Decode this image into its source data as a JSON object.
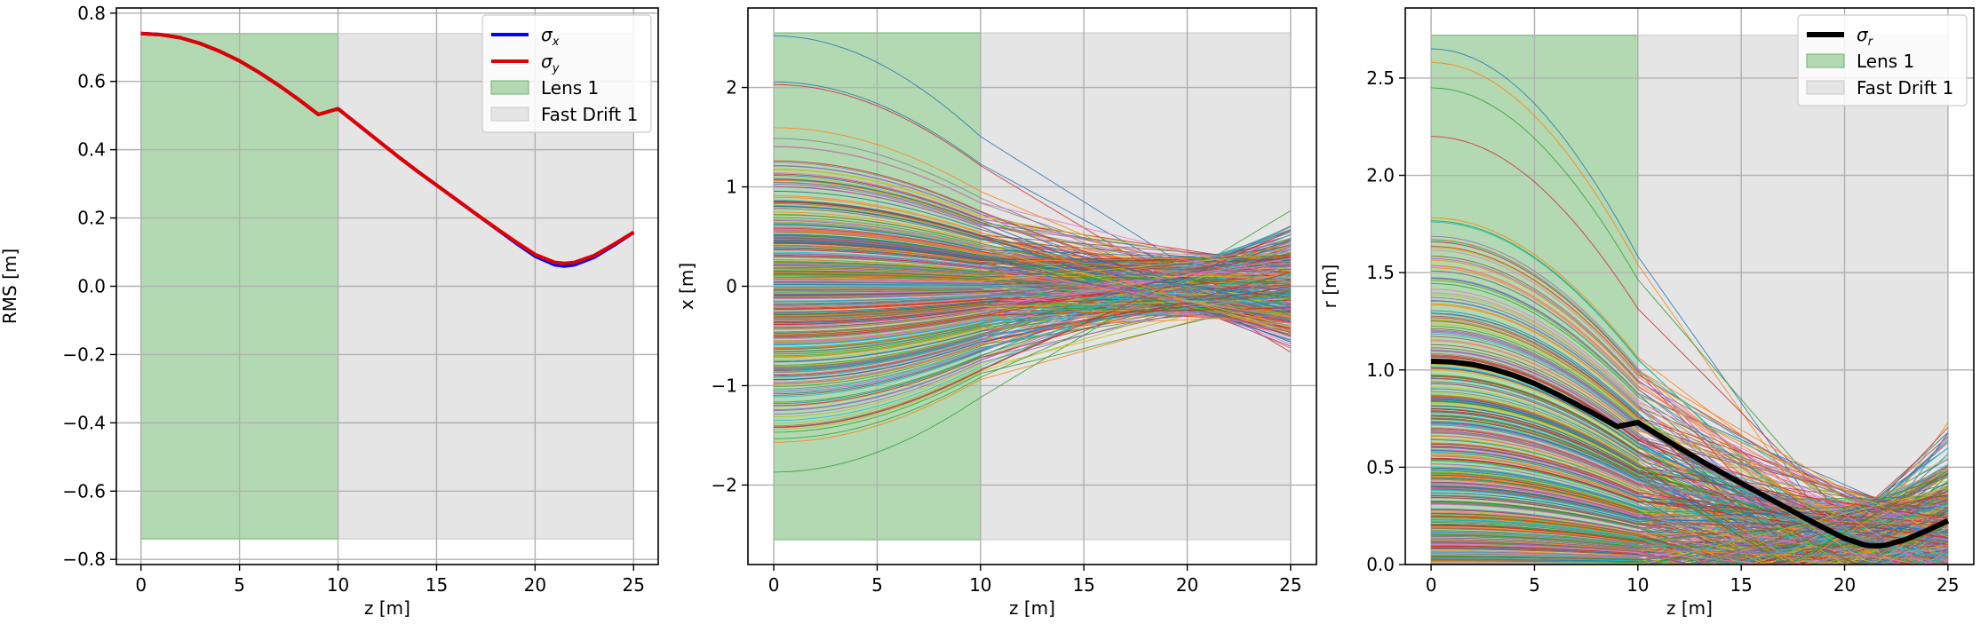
{
  "chart_data": [
    {
      "type": "line",
      "title": "",
      "xlabel": "z [m]",
      "ylabel": "RMS [m]",
      "xlim": [
        -1.25,
        26.25
      ],
      "ylim": [
        -0.815,
        0.815
      ],
      "xticks": [
        0,
        5,
        10,
        15,
        20,
        25
      ],
      "xtick_labels": [
        "0",
        "5",
        "10",
        "15",
        "20",
        "25"
      ],
      "yticks": [
        -0.8,
        -0.6,
        -0.4,
        -0.2,
        0.0,
        0.2,
        0.4,
        0.6,
        0.8
      ],
      "ytick_labels": [
        "−0.8",
        "−0.6",
        "−0.4",
        "−0.2",
        "0.0",
        "0.2",
        "0.4",
        "0.6",
        "0.8"
      ],
      "grid": true,
      "legend_position": "top-right",
      "regions": [
        {
          "name": "Lens 1",
          "x": [
            0,
            10
          ],
          "y": [
            -0.74,
            0.74
          ],
          "color": "#b3d9b3",
          "edge": "#6fb06f"
        },
        {
          "name": "Fast Drift 1",
          "x": [
            10,
            25
          ],
          "y": [
            -0.74,
            0.74
          ],
          "color": "#e5e5e5",
          "edge": "#c8c8c8"
        }
      ],
      "series": [
        {
          "name": "σ",
          "sub": "x",
          "color": "#0000ff",
          "x": [
            0,
            1,
            2,
            3,
            4,
            5,
            6,
            7,
            8,
            9,
            10,
            11,
            12,
            13,
            14,
            15,
            16,
            17,
            18,
            19,
            20,
            21,
            21.5,
            22,
            23,
            24,
            25
          ],
          "y": [
            0.74,
            0.737,
            0.728,
            0.711,
            0.688,
            0.66,
            0.626,
            0.588,
            0.547,
            0.503,
            0.52,
            0.474,
            0.428,
            0.382,
            0.338,
            0.296,
            0.254,
            0.212,
            0.17,
            0.128,
            0.088,
            0.063,
            0.059,
            0.063,
            0.085,
            0.12,
            0.158
          ]
        },
        {
          "name": "σ",
          "sub": "y",
          "color": "#e00000",
          "x": [
            0,
            1,
            2,
            3,
            4,
            5,
            6,
            7,
            8,
            9,
            10,
            11,
            12,
            13,
            14,
            15,
            16,
            17,
            18,
            19,
            20,
            21,
            21.5,
            22,
            23,
            24,
            25
          ],
          "y": [
            0.74,
            0.737,
            0.728,
            0.711,
            0.688,
            0.66,
            0.626,
            0.588,
            0.547,
            0.503,
            0.52,
            0.474,
            0.428,
            0.382,
            0.338,
            0.296,
            0.254,
            0.212,
            0.171,
            0.131,
            0.093,
            0.07,
            0.067,
            0.07,
            0.09,
            0.123,
            0.158
          ]
        }
      ]
    },
    {
      "type": "line",
      "title": "",
      "xlabel": "z [m]",
      "ylabel": "x [m]",
      "xlim": [
        -1.25,
        26.25
      ],
      "ylim": [
        -2.8,
        2.8
      ],
      "xticks": [
        0,
        5,
        10,
        15,
        20,
        25
      ],
      "xtick_labels": [
        "0",
        "5",
        "10",
        "15",
        "20",
        "25"
      ],
      "yticks": [
        -2,
        -1,
        0,
        1,
        2
      ],
      "ytick_labels": [
        "−2",
        "−1",
        "0",
        "1",
        "2"
      ],
      "grid": true,
      "regions": [
        {
          "name": "Lens 1",
          "x": [
            0,
            10
          ],
          "y": [
            -2.55,
            2.55
          ],
          "color": "#b3d9b3",
          "edge": "#6fb06f"
        },
        {
          "name": "Fast Drift 1",
          "x": [
            10,
            25
          ],
          "y": [
            -2.55,
            2.55
          ],
          "color": "#e5e5e5",
          "edge": "#c8c8c8"
        }
      ],
      "trajectories": {
        "count": 400,
        "model": "x(z) = x0 * f(z) + x0' * g(z), focusing inside the lens, linear drift after, waist near z = 21.5",
        "x0_range": [
          -1.85,
          2.55
        ],
        "focus_z": 21.5,
        "end_spread": [
          -0.5,
          0.45
        ]
      }
    },
    {
      "type": "line",
      "title": "",
      "xlabel": "z [m]",
      "ylabel": "r [m]",
      "xlim": [
        -1.25,
        26.25
      ],
      "ylim": [
        0.0,
        2.86
      ],
      "xticks": [
        0,
        5,
        10,
        15,
        20,
        25
      ],
      "xtick_labels": [
        "0",
        "5",
        "10",
        "15",
        "20",
        "25"
      ],
      "yticks": [
        0.0,
        0.5,
        1.0,
        1.5,
        2.0,
        2.5
      ],
      "ytick_labels": [
        "0.0",
        "0.5",
        "1.0",
        "1.5",
        "2.0",
        "2.5"
      ],
      "grid": true,
      "legend_position": "top-right",
      "regions": [
        {
          "name": "Lens 1",
          "x": [
            0,
            10
          ],
          "y": [
            0,
            2.72
          ],
          "color": "#b3d9b3",
          "edge": "#6fb06f"
        },
        {
          "name": "Fast Drift 1",
          "x": [
            10,
            25
          ],
          "y": [
            0,
            2.72
          ],
          "color": "#e5e5e5",
          "edge": "#c8c8c8"
        }
      ],
      "series": [
        {
          "name": "σ",
          "sub": "r",
          "color": "#000000",
          "x": [
            0,
            1,
            2,
            3,
            4,
            5,
            6,
            7,
            8,
            9,
            10,
            11,
            12,
            13,
            14,
            15,
            16,
            17,
            18,
            19,
            20,
            21,
            21.5,
            22,
            23,
            24,
            25
          ],
          "y": [
            1.045,
            1.041,
            1.028,
            1.005,
            0.972,
            0.93,
            0.88,
            0.825,
            0.768,
            0.709,
            0.73,
            0.664,
            0.6,
            0.537,
            0.476,
            0.418,
            0.36,
            0.302,
            0.244,
            0.188,
            0.134,
            0.1,
            0.095,
            0.1,
            0.13,
            0.175,
            0.225
          ]
        }
      ],
      "trajectories": {
        "count": 400,
        "r0_range": [
          0.0,
          2.65
        ],
        "focus_z": 21.5,
        "end_spread": [
          0.0,
          0.55
        ]
      }
    }
  ]
}
